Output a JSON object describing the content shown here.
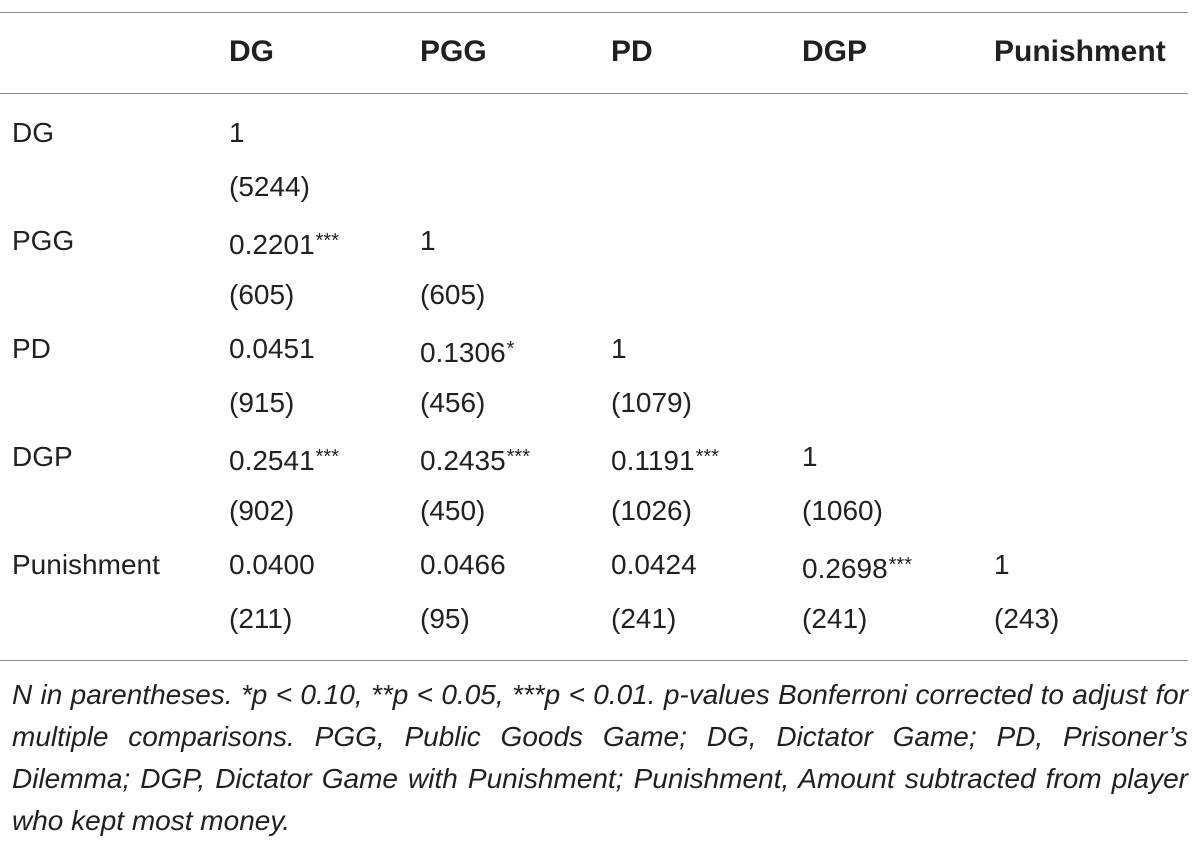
{
  "table": {
    "columns": [
      "DG",
      "PGG",
      "PD",
      "DGP",
      "Punishment"
    ],
    "rows": [
      {
        "label": "DG",
        "cells": [
          {
            "value": "1",
            "stars": "",
            "n": "(5244)"
          }
        ]
      },
      {
        "label": "PGG",
        "cells": [
          {
            "value": "0.2201",
            "stars": "***",
            "n": "(605)"
          },
          {
            "value": "1",
            "stars": "",
            "n": "(605)"
          }
        ]
      },
      {
        "label": "PD",
        "cells": [
          {
            "value": "0.0451",
            "stars": "",
            "n": "(915)"
          },
          {
            "value": "0.1306",
            "stars": "*",
            "n": "(456)"
          },
          {
            "value": "1",
            "stars": "",
            "n": "(1079)"
          }
        ]
      },
      {
        "label": "DGP",
        "cells": [
          {
            "value": "0.2541",
            "stars": "***",
            "n": "(902)"
          },
          {
            "value": "0.2435",
            "stars": "***",
            "n": "(450)"
          },
          {
            "value": "0.1191",
            "stars": "***",
            "n": "(1026)"
          },
          {
            "value": "1",
            "stars": "",
            "n": "(1060)"
          }
        ]
      },
      {
        "label": "Punishment",
        "cells": [
          {
            "value": "0.0400",
            "stars": "",
            "n": "(211)"
          },
          {
            "value": "0.0466",
            "stars": "",
            "n": "(95)"
          },
          {
            "value": "0.0424",
            "stars": "",
            "n": "(241)"
          },
          {
            "value": "0.2698",
            "stars": "***",
            "n": "(241)"
          },
          {
            "value": "1",
            "stars": "",
            "n": "(243)"
          }
        ]
      }
    ]
  },
  "footnote": "N in parentheses. *p < 0.10, **p < 0.05, ***p < 0.01. p-values Bonferroni corrected to adjust for multiple comparisons. PGG, Public Goods Game; DG, Dictator Game; PD, Prisoner’s Dilemma; DGP, Dictator Game with Punishment; Punishment, Amount subtracted from player who kept most money."
}
